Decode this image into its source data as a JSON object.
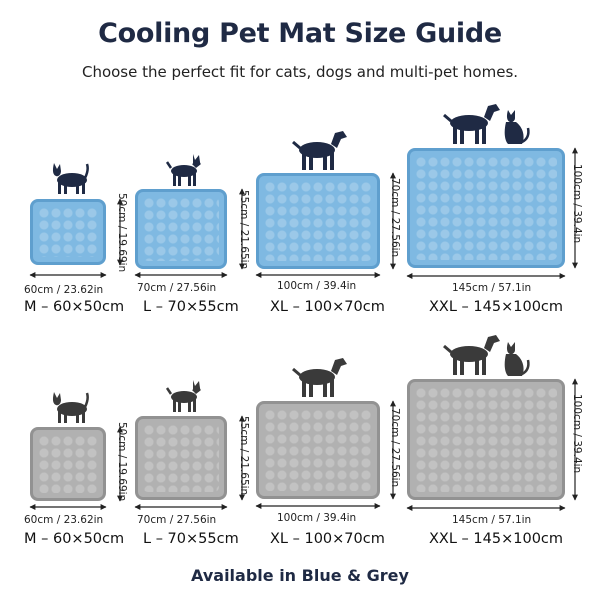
{
  "header": {
    "title": "Cooling Pet Mat Size Guide",
    "subtitle": "Choose the perfect fit for cats, dogs and multi-pet homes."
  },
  "footer": {
    "text": "Available in Blue & Grey"
  },
  "colors": {
    "blue_mat": "#7fb9e2",
    "grey_mat": "#b1b1b1",
    "title": "#1f2a44"
  },
  "rows": [
    {
      "color": "blue",
      "items": [
        {
          "width_label": "60cm / 23.62in",
          "height_label": "50cm / 19.69in",
          "size_label": "M – 60×50cm",
          "pets": [
            "cat-icon"
          ]
        },
        {
          "width_label": "70cm / 27.56in",
          "height_label": "55cm / 21.65in",
          "size_label": "L – 70×55cm",
          "pets": [
            "small-dog-icon"
          ]
        },
        {
          "width_label": "100cm / 39.4in",
          "height_label": "70cm / 27.56in",
          "size_label": "XL – 100×70cm",
          "pets": [
            "dog-icon"
          ]
        },
        {
          "width_label": "145cm / 57.1in",
          "height_label": "100cm / 39.4in",
          "size_label": "XXL – 145×100cm",
          "pets": [
            "dog-icon",
            "cat-icon"
          ]
        }
      ]
    },
    {
      "color": "grey",
      "items": [
        {
          "width_label": "60cm / 23.62in",
          "height_label": "50cm / 19.69in",
          "size_label": "M – 60×50cm",
          "pets": [
            "cat-icon"
          ]
        },
        {
          "width_label": "70cm / 27.56in",
          "height_label": "55cm / 21.65in",
          "size_label": "L – 70×55cm",
          "pets": [
            "small-dog-icon"
          ]
        },
        {
          "width_label": "100cm / 39.4in",
          "height_label": "70cm / 27.56in",
          "size_label": "XL – 100×70cm",
          "pets": [
            "dog-icon"
          ]
        },
        {
          "width_label": "145cm / 57.1in",
          "height_label": "100cm / 39.4in",
          "size_label": "XXL – 145×100cm",
          "pets": [
            "dog-icon",
            "cat-icon"
          ]
        }
      ]
    }
  ]
}
